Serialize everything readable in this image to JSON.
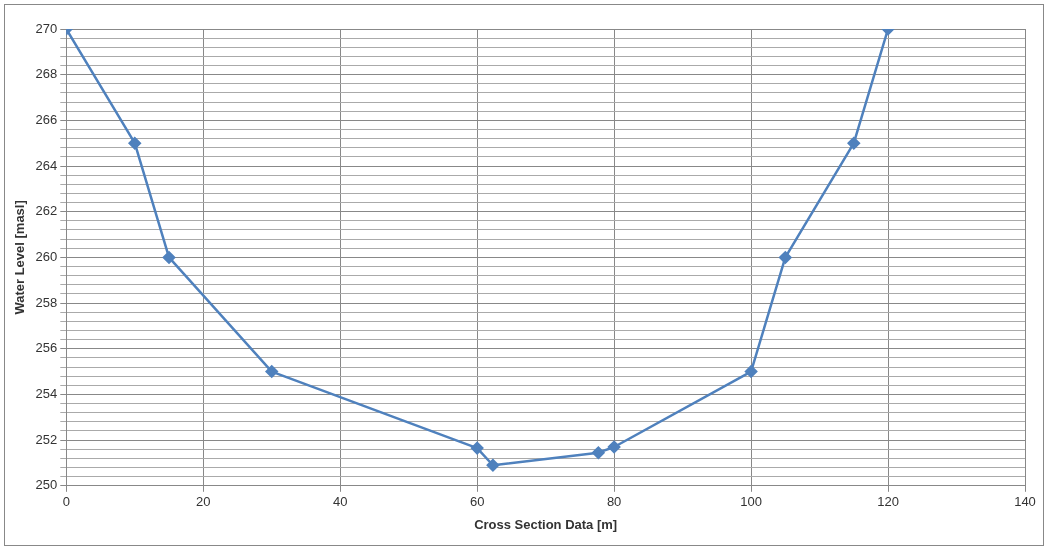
{
  "chart_data": {
    "type": "line",
    "xlabel": "Cross Section Data [m]",
    "ylabel": "Water Level [masl]",
    "x": [
      0,
      10,
      15,
      30,
      60,
      62.3,
      77.7,
      80,
      100,
      105,
      115,
      120
    ],
    "series": [
      {
        "color": "#4f81bd",
        "values": [
          270,
          265,
          260,
          255,
          251.65,
          250.9,
          251.45,
          251.7,
          255,
          260,
          265,
          270
        ]
      }
    ],
    "xlim": [
      0,
      140
    ],
    "xticks": [
      0,
      20,
      40,
      60,
      80,
      100,
      120,
      140
    ],
    "ylim": [
      250,
      270
    ],
    "yticks": [
      250,
      {
        "value": 250.4,
        "label": null
      },
      {
        "value": 250.8,
        "label": null
      },
      {
        "value": 251.2,
        "label": null
      },
      {
        "value": 251.6,
        "label": null
      },
      252,
      {
        "value": 252.4,
        "label": null
      },
      {
        "value": 252.8,
        "label": null
      },
      {
        "value": 253.2,
        "label": null
      },
      {
        "value": 253.6,
        "label": null
      },
      254,
      {
        "value": 254.4,
        "label": null
      },
      {
        "value": 254.8,
        "label": null
      },
      {
        "value": 255.2,
        "label": null
      },
      {
        "value": 255.6,
        "label": null
      },
      256,
      {
        "value": 256.4,
        "label": null
      },
      {
        "value": 256.8,
        "label": null
      },
      {
        "value": 257.2,
        "label": null
      },
      {
        "value": 257.6,
        "label": null
      },
      258,
      {
        "value": 258.4,
        "label": null
      },
      {
        "value": 258.8,
        "label": null
      },
      {
        "value": 259.2,
        "label": null
      },
      {
        "value": 259.6,
        "label": null
      },
      260,
      {
        "value": 260.4,
        "label": null
      },
      {
        "value": 260.8,
        "label": null
      },
      {
        "value": 261.2,
        "label": null
      },
      {
        "value": 261.6,
        "label": null
      },
      262,
      {
        "value": 262.4,
        "label": null
      },
      {
        "value": 262.8,
        "label": null
      },
      {
        "value": 263.2,
        "label": null
      },
      {
        "value": 263.6,
        "label": null
      },
      264,
      {
        "value": 264.4,
        "label": null
      },
      {
        "value": 264.8,
        "label": null
      },
      {
        "value": 265.2,
        "label": null
      },
      {
        "value": 265.6,
        "label": null
      },
      266,
      {
        "value": 266.4,
        "label": null
      },
      {
        "value": 266.8,
        "label": null
      },
      {
        "value": 267.2,
        "label": null
      },
      {
        "value": 267.6,
        "label": null
      },
      268,
      {
        "value": 268.4,
        "label": null
      },
      {
        "value": 268.8,
        "label": null
      },
      {
        "value": 269.2,
        "label": null
      },
      {
        "value": 269.6,
        "label": null
      },
      270
    ],
    "grid": true,
    "legend": false,
    "marker": "diamond",
    "line_style": "solid"
  }
}
